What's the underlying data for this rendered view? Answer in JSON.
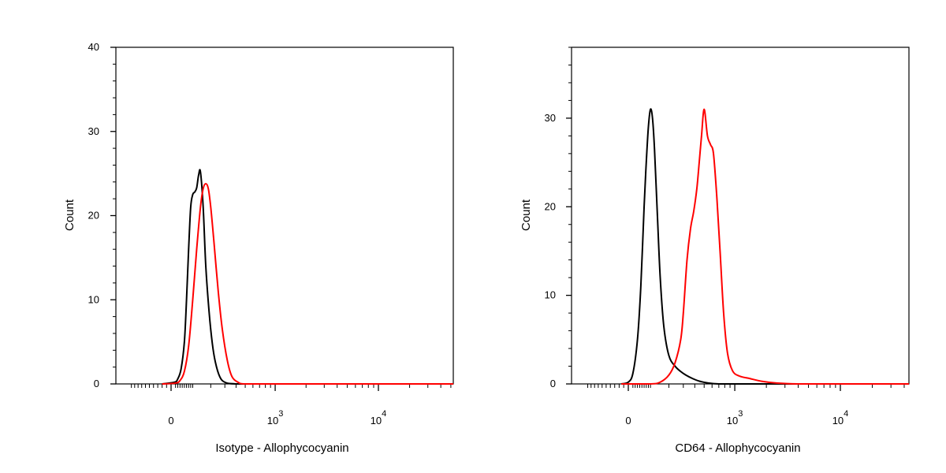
{
  "colors": {
    "control": "#000000",
    "stained": "#ff0000",
    "frame": "#000000",
    "background": "#ffffff"
  },
  "chart_data": [
    {
      "type": "line",
      "panel": "left",
      "xlabel": "Isotype - Allophycocyanin",
      "ylabel": "Count",
      "ylim": [
        0,
        40
      ],
      "y_ticks": [
        0,
        10,
        20,
        30,
        40
      ],
      "y_tick_labels": [
        "0",
        "10",
        "20",
        "30",
        "40"
      ],
      "x_scale": "biexponential",
      "x_major_ticks": [
        {
          "label": "0",
          "sup": ""
        },
        {
          "label": "10",
          "sup": "3"
        },
        {
          "label": "10",
          "sup": "4"
        }
      ],
      "grid": false,
      "legend": "none",
      "series": [
        {
          "color": "#000000",
          "x": [
            -40,
            15,
            30,
            45,
            60,
            70,
            80,
            90,
            100,
            110,
            120,
            130,
            140,
            155,
            170,
            190,
            210,
            230,
            260,
            300,
            400,
            1000,
            10000,
            60000
          ],
          "y": [
            0,
            0.2,
            0.6,
            1.8,
            5,
            10,
            16,
            21,
            22.5,
            22.8,
            23.3,
            24.8,
            25.2,
            21,
            14,
            8.5,
            4.8,
            2.6,
            0.9,
            0.2,
            0,
            0,
            0,
            0
          ]
        },
        {
          "color": "#ff0000",
          "x": [
            -40,
            20,
            40,
            60,
            80,
            100,
            120,
            140,
            155,
            170,
            185,
            200,
            220,
            250,
            280,
            320,
            360,
            420,
            500,
            1000,
            10000,
            60000
          ],
          "y": [
            0,
            0.1,
            0.4,
            1.5,
            4.5,
            10,
            16,
            21,
            23.2,
            23.8,
            23.2,
            21,
            17,
            11,
            6.5,
            2.8,
            0.9,
            0.2,
            0,
            0,
            0,
            0
          ]
        }
      ]
    },
    {
      "type": "line",
      "panel": "right",
      "xlabel": "CD64 - Allophycocyanin",
      "ylabel": "Count",
      "ylim": [
        0,
        38
      ],
      "y_ticks": [
        0,
        10,
        20,
        30
      ],
      "y_tick_labels": [
        "0",
        "10",
        "20",
        "30"
      ],
      "x_scale": "biexponential",
      "x_major_ticks": [
        {
          "label": "0",
          "sup": ""
        },
        {
          "label": "10",
          "sup": "3"
        },
        {
          "label": "10",
          "sup": "4"
        }
      ],
      "grid": false,
      "legend": "none",
      "series": [
        {
          "color": "#000000",
          "x": [
            -30,
            0,
            20,
            40,
            55,
            70,
            80,
            90,
            100,
            110,
            120,
            135,
            150,
            170,
            200,
            240,
            280,
            320,
            380,
            450,
            550,
            700,
            1000,
            10000,
            60000
          ],
          "y": [
            0,
            0.2,
            1.2,
            5,
            11,
            20,
            25,
            29,
            31,
            30,
            26.5,
            19,
            12,
            6.5,
            3.2,
            2,
            1.4,
            1,
            0.6,
            0.3,
            0.1,
            0,
            0,
            0,
            0
          ]
        },
        {
          "color": "#ff0000",
          "x": [
            -30,
            100,
            150,
            200,
            240,
            280,
            300,
            330,
            360,
            390,
            420,
            445,
            470,
            500,
            540,
            580,
            620,
            670,
            720,
            780,
            850,
            950,
            1100,
            1400,
            1800,
            2500,
            4000,
            10000,
            60000
          ],
          "y": [
            0,
            0,
            0.2,
            1,
            2.4,
            5,
            8,
            14,
            17.5,
            19.5,
            22,
            25,
            28,
            31,
            28,
            27,
            26,
            21,
            15,
            8,
            3.5,
            1.5,
            0.9,
            0.6,
            0.3,
            0.1,
            0,
            0,
            0
          ]
        }
      ]
    }
  ]
}
